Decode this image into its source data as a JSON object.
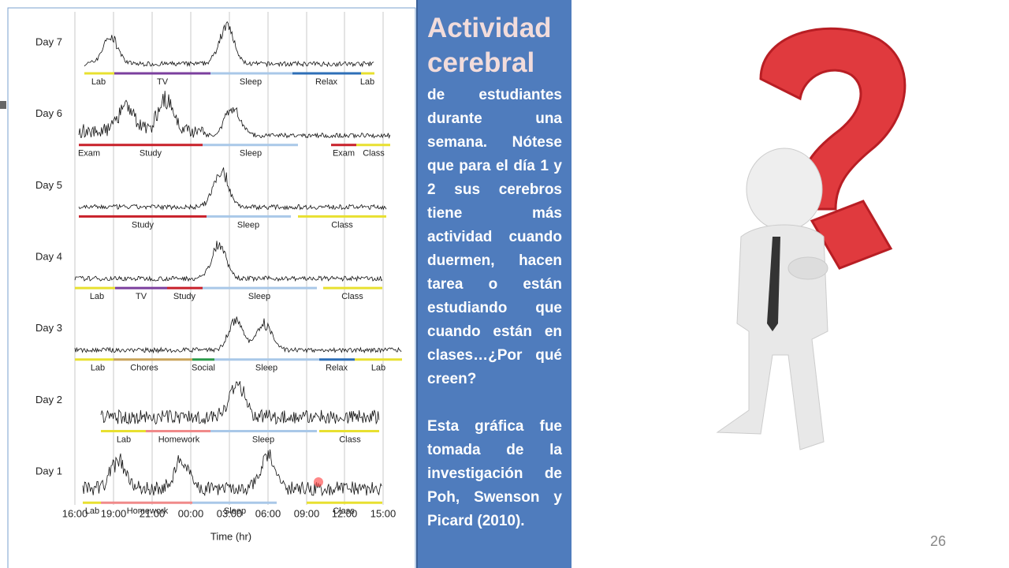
{
  "figure": {
    "days": [
      {
        "label": "Day 7",
        "activities": [
          {
            "label": "Lab",
            "color": "#e8e030"
          },
          {
            "label": "TV",
            "color": "#7b3f9e"
          },
          {
            "label": "Sleep",
            "color": "#a9c8e8"
          },
          {
            "label": "Relax",
            "color": "#2e6fb7"
          },
          {
            "label": "Lab",
            "color": "#e8e030"
          }
        ]
      },
      {
        "label": "Day 6",
        "activities": [
          {
            "label": "Exam",
            "color": "#c8202a"
          },
          {
            "label": "Study",
            "color": "#c8202a"
          },
          {
            "label": "Sleep",
            "color": "#a9c8e8"
          },
          {
            "label": "Exam",
            "color": "#c8202a"
          },
          {
            "label": "Class",
            "color": "#e8e030"
          }
        ]
      },
      {
        "label": "Day 5",
        "activities": [
          {
            "label": "Study",
            "color": "#c8202a"
          },
          {
            "label": "Sleep",
            "color": "#a9c8e8"
          },
          {
            "label": "Class",
            "color": "#e8e030"
          }
        ]
      },
      {
        "label": "Day 4",
        "activities": [
          {
            "label": "Lab",
            "color": "#e8e030"
          },
          {
            "label": "TV",
            "color": "#7b3f9e"
          },
          {
            "label": "Study",
            "color": "#c8202a"
          },
          {
            "label": "Sleep",
            "color": "#a9c8e8"
          },
          {
            "label": "Class",
            "color": "#e8e030"
          }
        ]
      },
      {
        "label": "Day 3",
        "activities": [
          {
            "label": "Lab",
            "color": "#e8e030"
          },
          {
            "label": "Chores",
            "color": "#c9a45a"
          },
          {
            "label": "Social",
            "color": "#2a9a4a"
          },
          {
            "label": "Sleep",
            "color": "#a9c8e8"
          },
          {
            "label": "Relax",
            "color": "#2e6fb7"
          },
          {
            "label": "Lab",
            "color": "#e8e030"
          }
        ]
      },
      {
        "label": "Day 2",
        "activities": [
          {
            "label": "Lab",
            "color": "#e8e030"
          },
          {
            "label": "Homework",
            "color": "#f08a8a"
          },
          {
            "label": "Sleep",
            "color": "#a9c8e8"
          },
          {
            "label": "Class",
            "color": "#e8e030"
          }
        ]
      },
      {
        "label": "Day 1",
        "activities": [
          {
            "label": "Lab",
            "color": "#e8e030"
          },
          {
            "label": "Homework",
            "color": "#f08a8a"
          },
          {
            "label": "Sleep",
            "color": "#a9c8e8"
          },
          {
            "label": "Class",
            "color": "#e8e030"
          }
        ]
      }
    ],
    "time_ticks": [
      "16:00",
      "19:00",
      "21:00",
      "00:00",
      "03:00",
      "06:00",
      "09:00",
      "12:00",
      "15:00"
    ],
    "x_label": "Time (hr)"
  },
  "text_box": {
    "title": "Actividad cerebral",
    "paragraphs": [
      "de estudiantes durante una semana. Nótese que para el día 1 y 2 sus cerebros tiene más actividad cuando duermen, hacen tarea o están estudiando que cuando están en clases…¿Por qué creen?",
      "Esta gráfica fue tomada de la investigación de Poh, Swenson y Picard (2010)."
    ]
  },
  "page_number": "26"
}
